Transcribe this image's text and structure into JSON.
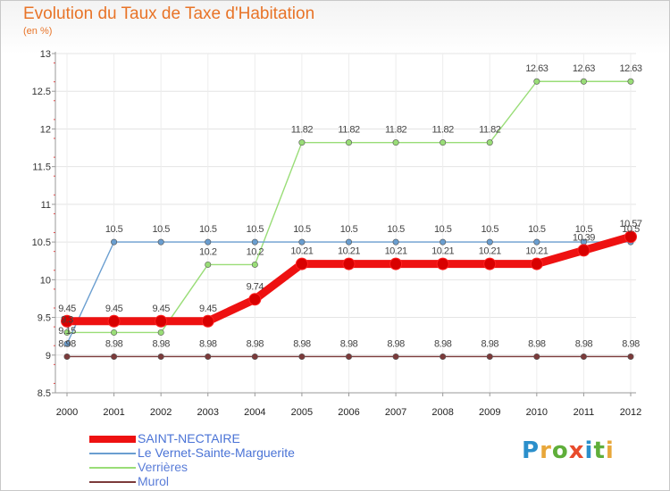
{
  "title": "Evolution du Taux de Taxe d'Habitation",
  "subtitle": "(en %)",
  "logo": {
    "text": "Proxiti",
    "colors": [
      "#2b8fcb",
      "#e8a73a",
      "#5fae3a",
      "#e84b2c",
      "#2b8fcb",
      "#5fae3a",
      "#e8a73a"
    ]
  },
  "chart_data": {
    "type": "line",
    "title": "Evolution du Taux de Taxe d'Habitation",
    "ylabel": "(en %)",
    "xlabel": "",
    "x": [
      "2000",
      "2001",
      "2002",
      "2003",
      "2004",
      "2005",
      "2006",
      "2007",
      "2008",
      "2009",
      "2010",
      "2011",
      "2012"
    ],
    "ylim": [
      8.5,
      13
    ],
    "yticks": [
      "8.5",
      "9",
      "9.5",
      "10",
      "10.5",
      "11",
      "11.5",
      "12",
      "12.5",
      "13"
    ],
    "grid": true,
    "legend": "bottom-left",
    "series": [
      {
        "name": "Murol",
        "color": "#7b3a3a",
        "values": [
          8.98,
          8.98,
          8.98,
          8.98,
          8.98,
          8.98,
          8.98,
          8.98,
          8.98,
          8.98,
          8.98,
          8.98,
          8.98
        ],
        "labels": [
          "8.98",
          "8.98",
          "8.98",
          "8.98",
          "8.98",
          "8.98",
          "8.98",
          "8.98",
          "8.98",
          "8.98",
          "8.98",
          "8.98",
          "8.98"
        ]
      },
      {
        "name": "Verrières",
        "color": "#99dd77",
        "values": [
          9.3,
          9.3,
          9.3,
          10.2,
          10.2,
          11.82,
          11.82,
          11.82,
          11.82,
          11.82,
          12.63,
          12.63,
          12.63
        ],
        "labels": [
          "9.3",
          "",
          "",
          "10.2",
          "10.2",
          "11.82",
          "11.82",
          "11.82",
          "11.82",
          "11.82",
          "12.63",
          "12.63",
          "12.63"
        ]
      },
      {
        "name": "Le Vernet-Sainte-Marguerite",
        "color": "#6a9ed0",
        "values": [
          9.15,
          10.5,
          10.5,
          10.5,
          10.5,
          10.5,
          10.5,
          10.5,
          10.5,
          10.5,
          10.5,
          10.5,
          10.5
        ],
        "labels": [
          "9.15",
          "10.5",
          "10.5",
          "10.5",
          "10.5",
          "10.5",
          "10.5",
          "10.5",
          "10.5",
          "10.5",
          "10.5",
          "10.5",
          "10.5"
        ]
      },
      {
        "name": "SAINT-NECTAIRE",
        "color": "#ee1111",
        "values": [
          9.45,
          9.45,
          9.45,
          9.45,
          9.74,
          10.21,
          10.21,
          10.21,
          10.21,
          10.21,
          10.21,
          10.39,
          10.57
        ],
        "labels": [
          "9.45",
          "9.45",
          "9.45",
          "9.45",
          "9.74",
          "10.21",
          "10.21",
          "10.21",
          "10.21",
          "10.21",
          "10.21",
          "10.39",
          "10.57"
        ]
      }
    ]
  }
}
